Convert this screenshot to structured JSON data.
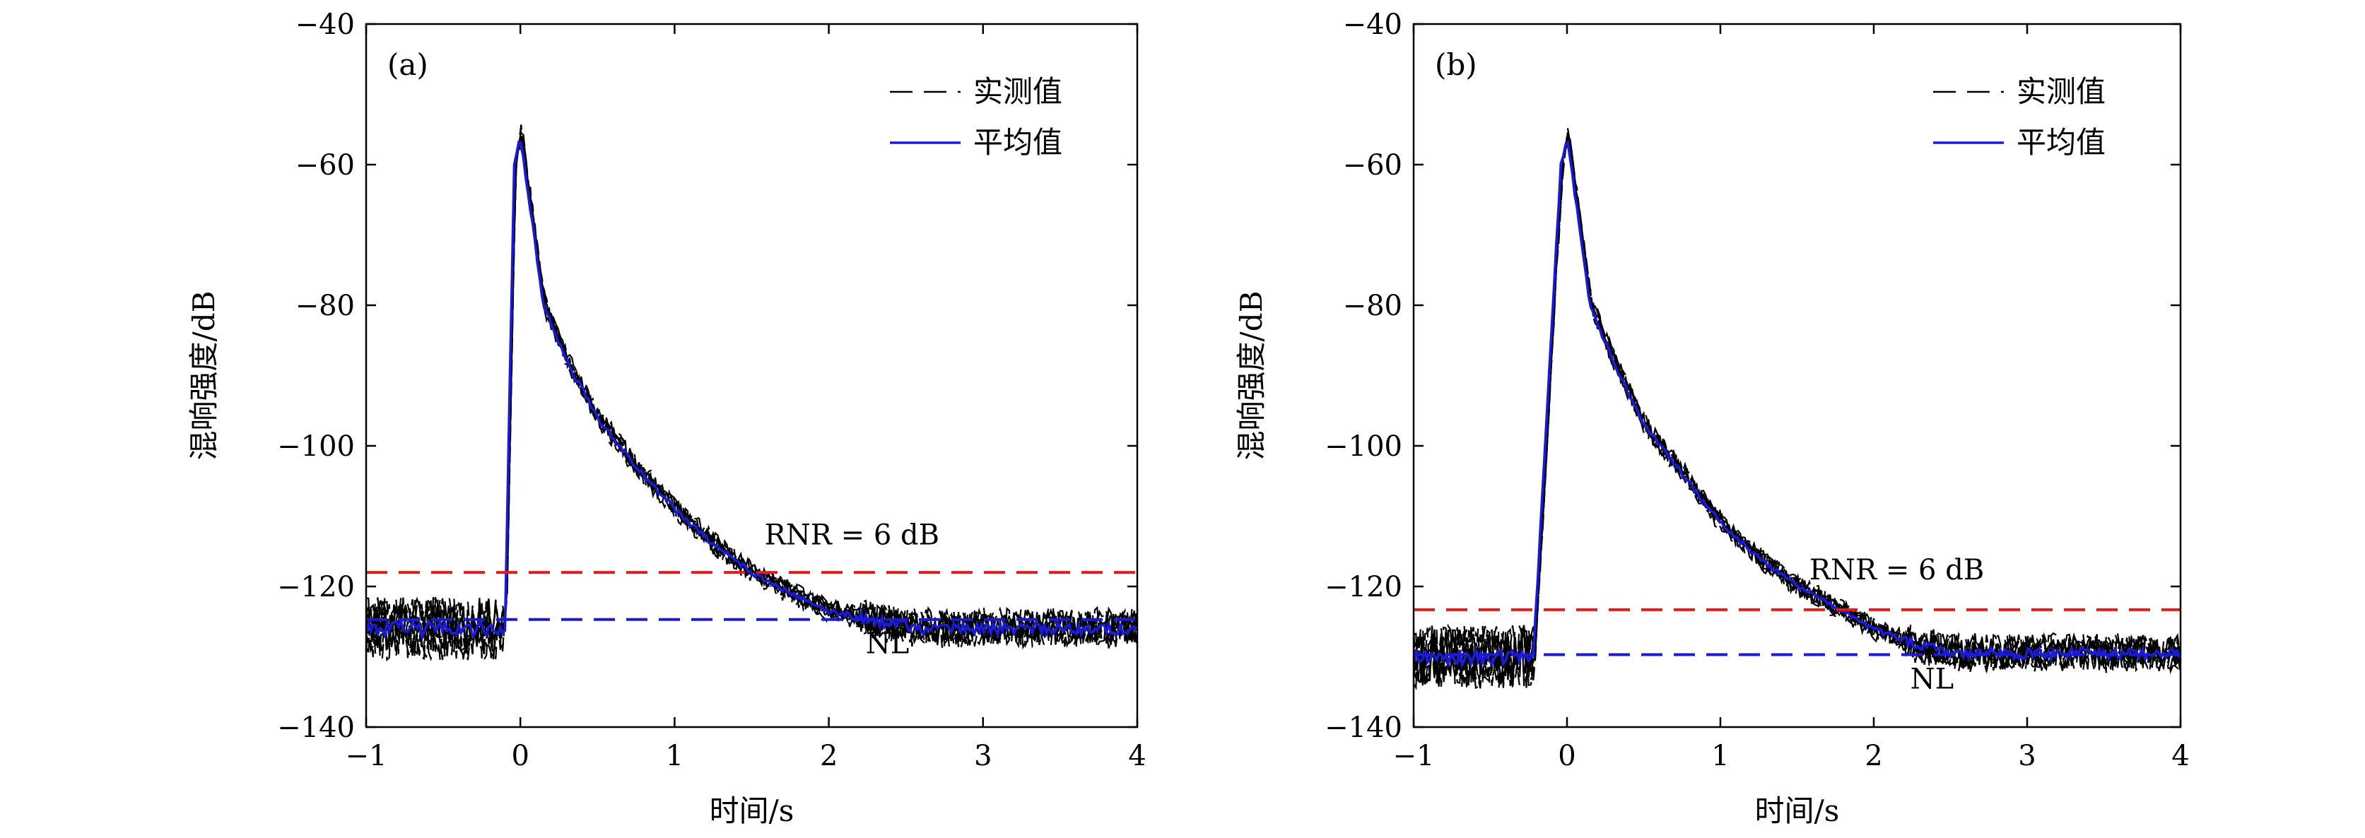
{
  "chart_data": [
    {
      "type": "line",
      "panel_label": "(a)",
      "xlabel": "时间/s",
      "ylabel": "混响强度/dB",
      "xlim": [
        -1,
        4
      ],
      "ylim": [
        -140,
        -40
      ],
      "xticks": [
        -1,
        0,
        1,
        2,
        3,
        4
      ],
      "yticks": [
        -40,
        -60,
        -80,
        -100,
        -120,
        -140
      ],
      "xtick_labels": [
        "−1",
        "0",
        "1",
        "2",
        "3",
        "4"
      ],
      "ytick_labels": [
        "−40",
        "−60",
        "−80",
        "−100",
        "−120",
        "−140"
      ],
      "grid": false,
      "legend_position": "top-right",
      "legend": [
        {
          "label": "实测值",
          "style": "dashed",
          "color": "#000000"
        },
        {
          "label": "平均值",
          "style": "solid",
          "color": "#1a1adb"
        }
      ],
      "noise_level_db": -125,
      "noise_floor_db": -126,
      "onset_s": -0.1,
      "peak_s": 0.0,
      "peak_db": -56,
      "early_decay_db": [
        -80,
        -88,
        -96,
        -103,
        -109,
        -114,
        -118,
        -121,
        -123.5,
        -125,
        -126
      ],
      "early_decay_t": [
        0.15,
        0.3,
        0.5,
        0.75,
        1.0,
        1.25,
        1.5,
        1.75,
        2.0,
        2.3,
        2.6
      ],
      "series": [
        {
          "name": "实测值",
          "style": "dashed",
          "color": "#000000",
          "count": 8
        },
        {
          "name": "平均值",
          "style": "solid",
          "color": "#1a1adb"
        }
      ],
      "reference_lines": [
        {
          "y": -118,
          "color": "#e81919",
          "style": "dashed",
          "label": "RNR = 6 dB"
        },
        {
          "y": -124.7,
          "color": "#1a1adb",
          "style": "dashed",
          "label": "NL"
        }
      ],
      "annotations": [
        {
          "text": "RNR = 6 dB",
          "x": 2.15,
          "y": -114
        },
        {
          "text": "NL",
          "x": 2.38,
          "y": -129.5
        }
      ]
    },
    {
      "type": "line",
      "panel_label": "(b)",
      "xlabel": "时间/s",
      "ylabel": "混响强度/dB",
      "xlim": [
        -1,
        4
      ],
      "ylim": [
        -140,
        -40
      ],
      "xticks": [
        -1,
        0,
        1,
        2,
        3,
        4
      ],
      "yticks": [
        -40,
        -60,
        -80,
        -100,
        -120,
        -140
      ],
      "xtick_labels": [
        "−1",
        "0",
        "1",
        "2",
        "3",
        "4"
      ],
      "ytick_labels": [
        "−40",
        "−60",
        "−80",
        "−100",
        "−120",
        "−140"
      ],
      "grid": false,
      "legend_position": "top-right",
      "legend": [
        {
          "label": "实测值",
          "style": "dashed",
          "color": "#000000"
        },
        {
          "label": "平均值",
          "style": "solid",
          "color": "#1a1adb"
        }
      ],
      "noise_level_db": -130,
      "noise_floor_db": -130,
      "onset_s": -0.22,
      "peak_s": 0.0,
      "peak_db": -56,
      "early_decay_db": [
        -80,
        -88,
        -97,
        -104,
        -111,
        -116,
        -120,
        -123,
        -126,
        -128.5,
        -129.5
      ],
      "early_decay_t": [
        0.15,
        0.3,
        0.5,
        0.75,
        1.0,
        1.25,
        1.5,
        1.75,
        2.0,
        2.3,
        2.6
      ],
      "series": [
        {
          "name": "实测值",
          "style": "dashed",
          "color": "#000000",
          "count": 8
        },
        {
          "name": "平均值",
          "style": "solid",
          "color": "#1a1adb"
        }
      ],
      "reference_lines": [
        {
          "y": -123.3,
          "color": "#e81919",
          "style": "dashed",
          "label": "RNR = 6 dB"
        },
        {
          "y": -129.7,
          "color": "#1a1adb",
          "style": "dashed",
          "label": "NL"
        }
      ],
      "annotations": [
        {
          "text": "RNR = 6 dB",
          "x": 2.15,
          "y": -119
        },
        {
          "text": "NL",
          "x": 2.38,
          "y": -134.5
        }
      ]
    }
  ]
}
